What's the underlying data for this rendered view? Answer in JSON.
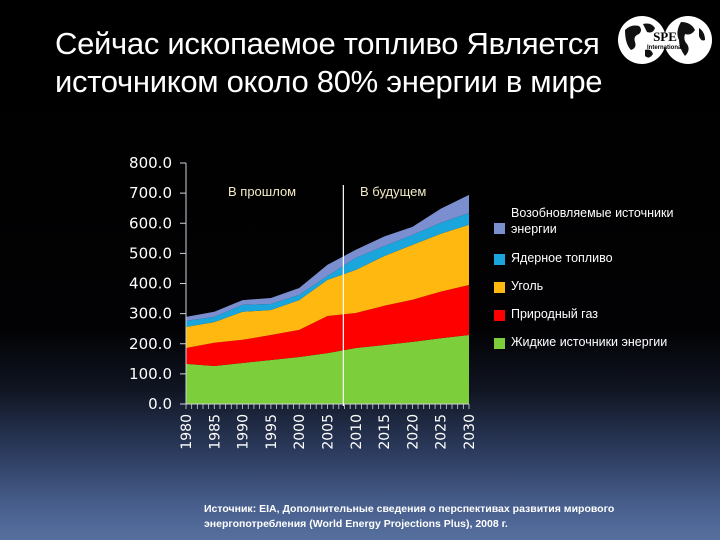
{
  "slide": {
    "title_lines": [
      "Сейчас ископаемое топливо Является",
      "источником около 80% энергии в мире"
    ],
    "logo": {
      "icon": "globe-icon",
      "text_top": "SPE",
      "text_bottom": "International"
    },
    "period_labels": {
      "past": "В прошлом",
      "future": "В будущем"
    },
    "source_lines": [
      "Источник: EIA, Дополнительные сведения о перспективах развития мирового",
      "энергопотребления (World Energy Projections Plus), 2008 г."
    ]
  },
  "chart_data": {
    "type": "area",
    "stacked": true,
    "title": "Сейчас ископаемое топливо Является источником около 80% энергии в мире",
    "xlabel": "",
    "ylabel": "",
    "x": [
      1980,
      1985,
      1990,
      1995,
      2000,
      2005,
      2010,
      2015,
      2020,
      2025,
      2030
    ],
    "yticks": [
      "0.0",
      "100.0",
      "200.0",
      "300.0",
      "400.0",
      "500.0",
      "600.0",
      "700.0",
      "800.0"
    ],
    "ylim": [
      0,
      800
    ],
    "xlim": [
      1980,
      2030
    ],
    "grid": false,
    "divider_year": 2007.8,
    "annotations": [
      "В прошлом",
      "В будущем"
    ],
    "legend_position": "right",
    "series": [
      {
        "name": "Жидкие источники энергии",
        "color": "#7ccf3a",
        "values": [
          133,
          126,
          136,
          146,
          156,
          169,
          186,
          196,
          206,
          218,
          229
        ]
      },
      {
        "name": "Природный газ",
        "color": "#ff0000",
        "values": [
          53,
          77,
          77,
          83,
          90,
          123,
          116,
          130,
          140,
          155,
          166
        ]
      },
      {
        "name": "Уголь",
        "color": "#ffb80f",
        "values": [
          70,
          69,
          93,
          83,
          99,
          120,
          143,
          165,
          182,
          192,
          200
        ]
      },
      {
        "name": "Ядерное топливо",
        "color": "#1aa6dd",
        "values": [
          20,
          17,
          23,
          20,
          17,
          13,
          40,
          33,
          33,
          36,
          39
        ]
      },
      {
        "name": "Возобновляемые источники энергии",
        "color": "#7b8fd0",
        "values": [
          13,
          17,
          16,
          20,
          23,
          37,
          27,
          32,
          27,
          47,
          60
        ]
      }
    ]
  },
  "legend": {
    "items": [
      {
        "label": "Возобновляемые источники энергии",
        "color": "#7b8fd0"
      },
      {
        "label": "Ядерное топливо",
        "color": "#1aa6dd"
      },
      {
        "label": "Уголь",
        "color": "#ffb80f"
      },
      {
        "label": "Природный газ",
        "color": "#ff0000"
      },
      {
        "label": "Жидкие источники энергии",
        "color": "#7ccf3a"
      }
    ]
  }
}
